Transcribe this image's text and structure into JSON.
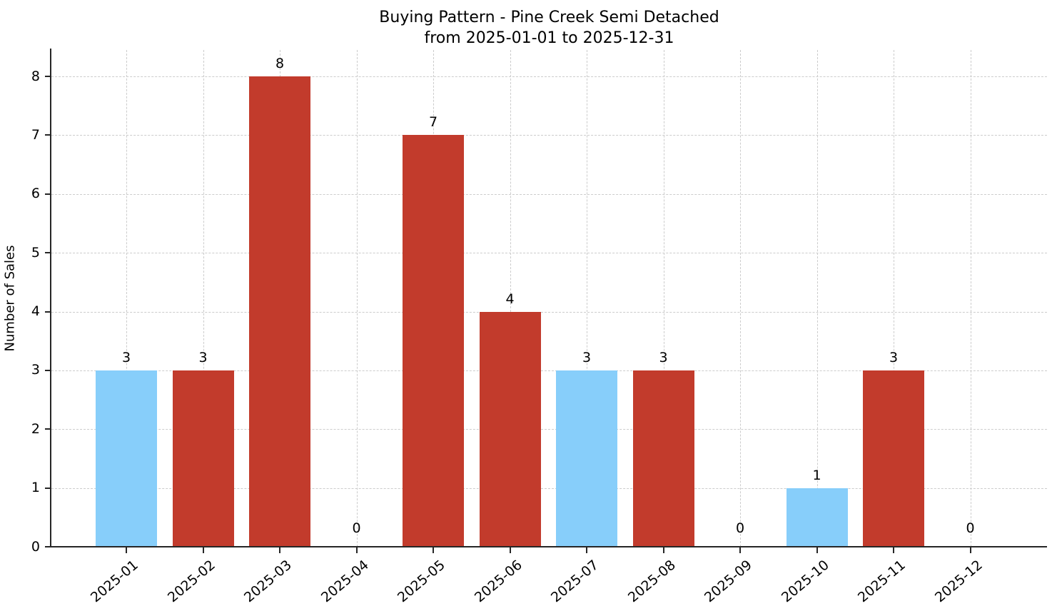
{
  "chart_data": {
    "type": "bar",
    "title_line1": "Buying Pattern - Pine Creek Semi Detached",
    "title_line2": "from 2025-01-01 to 2025-12-31",
    "ylabel": "Number of Sales",
    "xlabel": "",
    "categories": [
      "2025-01",
      "2025-02",
      "2025-03",
      "2025-04",
      "2025-05",
      "2025-06",
      "2025-07",
      "2025-08",
      "2025-09",
      "2025-10",
      "2025-11",
      "2025-12"
    ],
    "values": [
      3,
      3,
      8,
      0,
      7,
      4,
      3,
      3,
      0,
      1,
      3,
      0
    ],
    "value_labels": [
      "3",
      "3",
      "8",
      "0",
      "7",
      "4",
      "3",
      "3",
      "0",
      "1",
      "3",
      "0"
    ],
    "bar_color_keys": [
      "blue",
      "red",
      "red",
      null,
      "red",
      "red",
      "blue",
      "red",
      null,
      "blue",
      "red",
      null
    ],
    "yticks": [
      0,
      1,
      2,
      3,
      4,
      5,
      6,
      7,
      8
    ],
    "ylim": [
      0,
      8.45
    ],
    "grid": true,
    "legend": null
  },
  "colors": {
    "red": "#c23b2c",
    "blue": "#87cefa",
    "grid": "#cccccc",
    "axis": "#262626",
    "text": "#000000",
    "background": "#ffffff"
  }
}
